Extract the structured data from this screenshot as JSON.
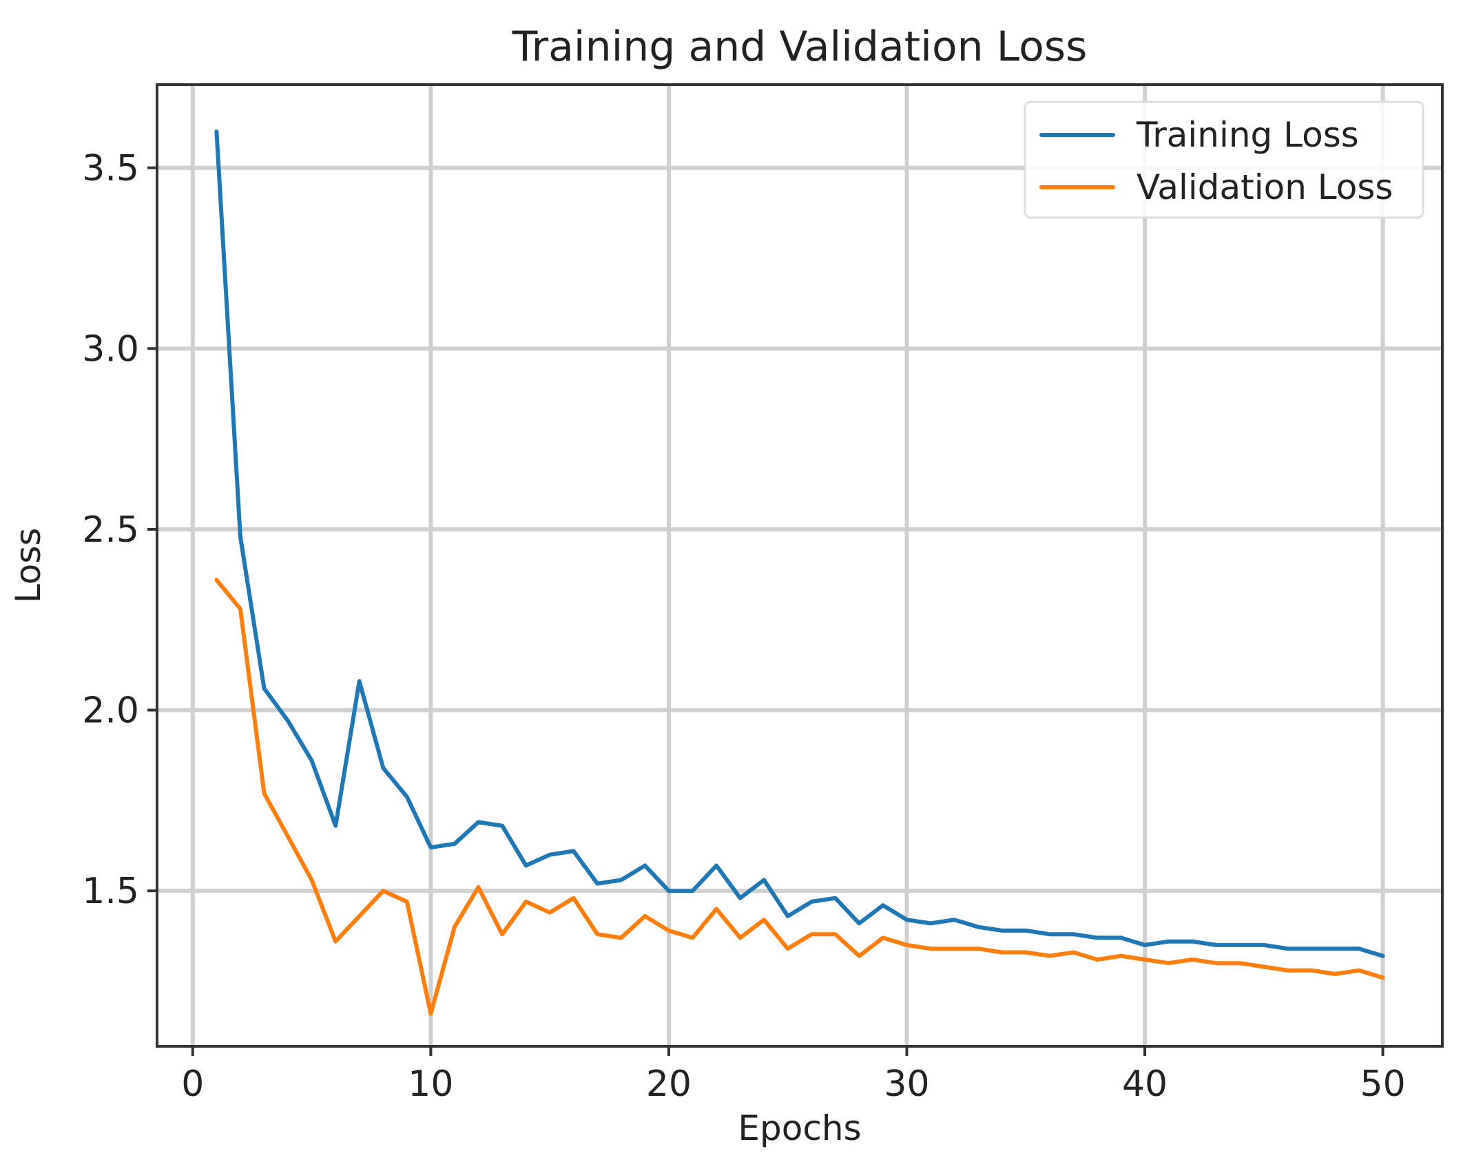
{
  "chart_data": {
    "type": "line",
    "title": "Training and Validation Loss",
    "xlabel": "Epochs",
    "ylabel": "Loss",
    "xlim": [
      -1.5,
      52.5
    ],
    "ylim": [
      1.07,
      3.73
    ],
    "xticks": [
      0,
      10,
      20,
      30,
      40,
      50
    ],
    "xtick_labels": [
      "0",
      "10",
      "20",
      "30",
      "40",
      "50"
    ],
    "yticks": [
      1.5,
      2.0,
      2.5,
      3.0,
      3.5
    ],
    "ytick_labels": [
      "1.5",
      "2.0",
      "2.5",
      "3.0",
      "3.5"
    ],
    "grid": true,
    "legend_position": "top-right",
    "x": [
      1,
      2,
      3,
      4,
      5,
      6,
      7,
      8,
      9,
      10,
      11,
      12,
      13,
      14,
      15,
      16,
      17,
      18,
      19,
      20,
      21,
      22,
      23,
      24,
      25,
      26,
      27,
      28,
      29,
      30,
      31,
      32,
      33,
      34,
      35,
      36,
      37,
      38,
      39,
      40,
      41,
      42,
      43,
      44,
      45,
      46,
      47,
      48,
      49,
      50
    ],
    "series": [
      {
        "name": "Training Loss",
        "color": "#1f77b4",
        "values": [
          3.6,
          2.48,
          2.06,
          1.97,
          1.86,
          1.68,
          2.08,
          1.84,
          1.76,
          1.62,
          1.63,
          1.69,
          1.68,
          1.57,
          1.6,
          1.61,
          1.52,
          1.53,
          1.57,
          1.5,
          1.5,
          1.57,
          1.48,
          1.53,
          1.43,
          1.47,
          1.48,
          1.41,
          1.46,
          1.42,
          1.41,
          1.42,
          1.4,
          1.39,
          1.39,
          1.38,
          1.38,
          1.37,
          1.37,
          1.35,
          1.36,
          1.36,
          1.35,
          1.35,
          1.35,
          1.34,
          1.34,
          1.34,
          1.34,
          1.32
        ]
      },
      {
        "name": "Validation Loss",
        "color": "#ff7f0e",
        "values": [
          2.36,
          2.28,
          1.77,
          1.65,
          1.53,
          1.36,
          1.43,
          1.5,
          1.47,
          1.16,
          1.4,
          1.51,
          1.38,
          1.47,
          1.44,
          1.48,
          1.38,
          1.37,
          1.43,
          1.39,
          1.37,
          1.45,
          1.37,
          1.42,
          1.34,
          1.38,
          1.38,
          1.32,
          1.37,
          1.35,
          1.34,
          1.34,
          1.34,
          1.33,
          1.33,
          1.32,
          1.33,
          1.31,
          1.32,
          1.31,
          1.3,
          1.31,
          1.3,
          1.3,
          1.29,
          1.28,
          1.28,
          1.27,
          1.28,
          1.26
        ]
      }
    ]
  }
}
